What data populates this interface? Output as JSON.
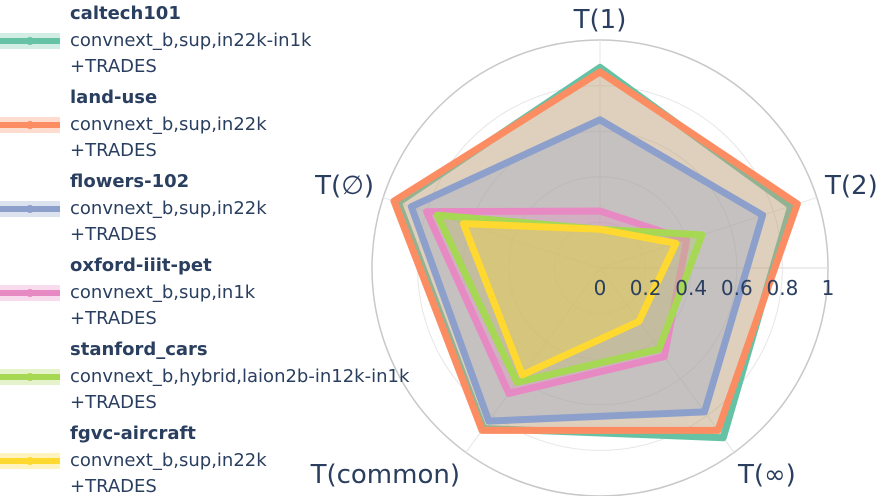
{
  "chart_data": {
    "type": "radar",
    "axes": [
      "T(1)",
      "T(2)",
      "T(∞)",
      "T(common)",
      "T(∅)"
    ],
    "radial_ticks": [
      "0",
      "0.2",
      "0.4",
      "0.6",
      "0.8",
      "1"
    ],
    "radial_range": [
      0,
      1
    ],
    "grid": true,
    "legend_position": "left",
    "series": [
      {
        "name": "caltech101",
        "line1": "convnext_b,sup,in22k-in1k",
        "line2": "+TRADES",
        "color": "#66c2a5",
        "values": [
          0.88,
          0.88,
          0.92,
          0.87,
          0.93
        ]
      },
      {
        "name": "land-use",
        "line1": "convnext_b,sup,in22k",
        "line2": "+TRADES",
        "color": "#fc8d62",
        "values": [
          0.86,
          0.91,
          0.88,
          0.88,
          0.95
        ]
      },
      {
        "name": "flowers-102",
        "line1": "convnext_b,sup,in22k",
        "line2": "+TRADES",
        "color": "#8da0cb",
        "values": [
          0.65,
          0.75,
          0.78,
          0.83,
          0.87
        ]
      },
      {
        "name": "oxford-iiit-pet",
        "line1": "convnext_b,sup,in1k",
        "line2": "+TRADES",
        "color": "#e78ac3",
        "values": [
          0.25,
          0.4,
          0.48,
          0.68,
          0.8
        ]
      },
      {
        "name": "stanford_cars",
        "line1": "convnext_b,hybrid,laion2b-in12k-in1k",
        "line2": "+TRADES",
        "color": "#a6d854",
        "values": [
          0.17,
          0.47,
          0.44,
          0.62,
          0.75
        ]
      },
      {
        "name": "fgvc-aircraft",
        "line1": "convnext_b,sup,in22k",
        "line2": "+TRADES",
        "color": "#ffd92f",
        "values": [
          0.17,
          0.35,
          0.29,
          0.58,
          0.63
        ]
      }
    ]
  }
}
